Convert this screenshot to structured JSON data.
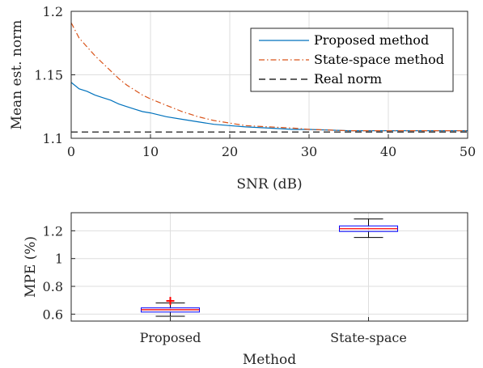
{
  "chart_data": [
    {
      "type": "line",
      "title": "",
      "xlabel": "SNR (dB)",
      "ylabel": "Mean est. norm",
      "xlim": [
        0,
        50
      ],
      "ylim": [
        1.1,
        1.2
      ],
      "xticks": [
        "0",
        "10",
        "20",
        "30",
        "40",
        "50"
      ],
      "yticks": [
        "1.1",
        "1.15",
        "1.2"
      ],
      "grid": true,
      "legend_position": "top-right",
      "series": [
        {
          "name": "Proposed method",
          "color": "#0072BD",
          "style": "solid",
          "x": [
            0,
            1,
            2,
            3,
            4,
            5,
            6,
            7,
            8,
            9,
            10,
            12,
            14,
            16,
            18,
            20,
            22,
            25,
            28,
            30,
            35,
            40,
            45,
            50
          ],
          "y": [
            1.144,
            1.139,
            1.137,
            1.134,
            1.132,
            1.13,
            1.127,
            1.125,
            1.123,
            1.121,
            1.12,
            1.117,
            1.115,
            1.113,
            1.111,
            1.11,
            1.109,
            1.108,
            1.107,
            1.107,
            1.106,
            1.106,
            1.106,
            1.106
          ]
        },
        {
          "name": "State-space method",
          "color": "#D95319",
          "style": "dashdot",
          "x": [
            0,
            1,
            2,
            3,
            4,
            5,
            6,
            7,
            8,
            9,
            10,
            12,
            14,
            16,
            18,
            20,
            22,
            25,
            28,
            30,
            35,
            40,
            45,
            50
          ],
          "y": [
            1.191,
            1.179,
            1.172,
            1.165,
            1.159,
            1.153,
            1.147,
            1.142,
            1.138,
            1.134,
            1.131,
            1.126,
            1.121,
            1.117,
            1.114,
            1.112,
            1.11,
            1.109,
            1.108,
            1.107,
            1.106,
            1.106,
            1.106,
            1.106
          ]
        },
        {
          "name": "Real norm",
          "color": "#000000",
          "style": "dashed",
          "x": [
            0,
            50
          ],
          "y": [
            1.105,
            1.105
          ]
        }
      ]
    },
    {
      "type": "box",
      "title": "",
      "xlabel": "Method",
      "ylabel": "MPE (%)",
      "ylim": [
        0.55,
        1.33
      ],
      "yticks": [
        "0.6",
        "0.8",
        "1",
        "1.2"
      ],
      "grid": true,
      "categories": [
        "Proposed",
        "State-space"
      ],
      "boxes": [
        {
          "whisker_low": 0.585,
          "q1": 0.615,
          "median": 0.632,
          "q3": 0.645,
          "whisker_high": 0.68,
          "outliers": [
            0.695
          ]
        },
        {
          "whisker_low": 1.152,
          "q1": 1.195,
          "median": 1.215,
          "q3": 1.235,
          "whisker_high": 1.285,
          "outliers": []
        }
      ],
      "colors": {
        "box": "#0000FF",
        "median": "#FF0000",
        "outlier": "#FF0000",
        "whisker": "#000000"
      }
    }
  ]
}
